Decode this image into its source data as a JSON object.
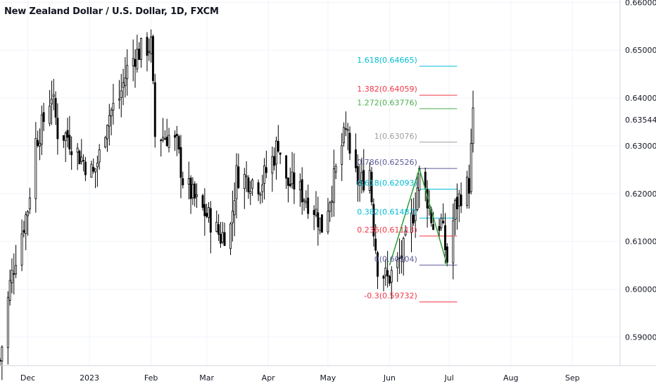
{
  "header": {
    "title": "New Zealand Dollar / U.S. Dollar, 1D, FXCM"
  },
  "colors": {
    "up": "#ffffff",
    "down": "#000000",
    "wick": "#000000",
    "grid": "#f0f3fa",
    "axis_text": "#131722",
    "fib_green_line": "#2e9e33"
  },
  "price_axis": {
    "labels": [
      "0.59000",
      "0.60000",
      "0.61000",
      "0.62000",
      "0.63000",
      "0.63544",
      "0.64000",
      "0.65000",
      "0.66000"
    ],
    "current_price": "0.63544"
  },
  "time_axis": {
    "labels": [
      "Dec",
      "2023",
      "Feb",
      "Mar",
      "Apr",
      "May",
      "Jun",
      "Jul",
      "Aug",
      "Sep"
    ]
  },
  "fib_levels": [
    {
      "label": "1.618(0.64665)",
      "price": 0.64665,
      "color": "#00bcd4"
    },
    {
      "label": "1.382(0.64059)",
      "price": 0.64059,
      "color": "#f23645"
    },
    {
      "label": "1.272(0.63776)",
      "price": 0.63776,
      "color": "#4caf50"
    },
    {
      "label": "1(0.63076)",
      "price": 0.63076,
      "color": "#9e9e9e"
    },
    {
      "label": "0.786(0.62526)",
      "price": 0.62526,
      "color": "#5b5b9a"
    },
    {
      "label": "0.618(0.62093)",
      "price": 0.62093,
      "color": "#00bcd4"
    },
    {
      "label": "0.382(0.61487)",
      "price": 0.61487,
      "color": "#00bcd4"
    },
    {
      "label": "0.236(0.61113)",
      "price": 0.61113,
      "color": "#f23645"
    },
    {
      "label": "0(0.60504)",
      "price": 0.60504,
      "color": "#5b5b9a"
    },
    {
      "label": "-0.3(0.59732)",
      "price": 0.59732,
      "color": "#f23645"
    }
  ],
  "chart_data": {
    "type": "candlestick",
    "title": "New Zealand Dollar / U.S. Dollar, 1D, FXCM",
    "ylim": [
      0.584,
      0.6605
    ],
    "x_range": [
      "2022-11-17",
      "2023-09-25"
    ],
    "x_ticks": [
      {
        "label": "Dec",
        "date": "2022-12-01"
      },
      {
        "label": "2023",
        "date": "2023-01-01"
      },
      {
        "label": "Feb",
        "date": "2023-02-01"
      },
      {
        "label": "Mar",
        "date": "2023-03-01"
      },
      {
        "label": "Apr",
        "date": "2023-04-01"
      },
      {
        "label": "May",
        "date": "2023-05-01"
      },
      {
        "label": "Jun",
        "date": "2023-06-01"
      },
      {
        "label": "Jul",
        "date": "2023-07-01"
      },
      {
        "label": "Aug",
        "date": "2023-08-01"
      },
      {
        "label": "Sep",
        "date": "2023-09-01"
      }
    ],
    "keypoints": [
      [
        "2022-11-17",
        0.585
      ],
      [
        "2022-11-22",
        0.601
      ],
      [
        "2022-11-25",
        0.607
      ],
      [
        "2022-12-01",
        0.617
      ],
      [
        "2022-12-05",
        0.631
      ],
      [
        "2022-12-08",
        0.634
      ],
      [
        "2022-12-13",
        0.641
      ],
      [
        "2022-12-16",
        0.633
      ],
      [
        "2022-12-21",
        0.632
      ],
      [
        "2022-12-27",
        0.628
      ],
      [
        "2023-01-03",
        0.624
      ],
      [
        "2023-01-06",
        0.628
      ],
      [
        "2023-01-10",
        0.636
      ],
      [
        "2023-01-16",
        0.64
      ],
      [
        "2023-01-20",
        0.646
      ],
      [
        "2023-01-24",
        0.649
      ],
      [
        "2023-01-27",
        0.65
      ],
      [
        "2023-02-01",
        0.651
      ],
      [
        "2023-02-03",
        0.632
      ],
      [
        "2023-02-10",
        0.632
      ],
      [
        "2023-02-14",
        0.63
      ],
      [
        "2023-02-17",
        0.623
      ],
      [
        "2023-02-24",
        0.618
      ],
      [
        "2023-03-02",
        0.615
      ],
      [
        "2023-03-08",
        0.611
      ],
      [
        "2023-03-13",
        0.613
      ],
      [
        "2023-03-16",
        0.624
      ],
      [
        "2023-03-22",
        0.623
      ],
      [
        "2023-03-28",
        0.622
      ],
      [
        "2023-04-04",
        0.628
      ],
      [
        "2023-04-06",
        0.631
      ],
      [
        "2023-04-10",
        0.622
      ],
      [
        "2023-04-14",
        0.622
      ],
      [
        "2023-04-18",
        0.62
      ],
      [
        "2023-04-24",
        0.617
      ],
      [
        "2023-04-28",
        0.613
      ],
      [
        "2023-05-03",
        0.621
      ],
      [
        "2023-05-08",
        0.63
      ],
      [
        "2023-05-11",
        0.634
      ],
      [
        "2023-05-12",
        0.626
      ],
      [
        "2023-05-17",
        0.622
      ],
      [
        "2023-05-22",
        0.625
      ],
      [
        "2023-05-24",
        0.613
      ],
      [
        "2023-05-26",
        0.605
      ],
      [
        "2023-05-31",
        0.602
      ],
      [
        "2023-06-05",
        0.605
      ],
      [
        "2023-06-08",
        0.608
      ],
      [
        "2023-06-13",
        0.616
      ],
      [
        "2023-06-16",
        0.624
      ],
      [
        "2023-06-20",
        0.619
      ],
      [
        "2023-06-23",
        0.613
      ],
      [
        "2023-06-27",
        0.614
      ],
      [
        "2023-06-30",
        0.606
      ],
      [
        "2023-07-04",
        0.617
      ],
      [
        "2023-07-07",
        0.62
      ],
      [
        "2023-07-11",
        0.622
      ],
      [
        "2023-07-13",
        0.636
      ]
    ],
    "fib_anchor_lines": [
      {
        "from": [
          "2023-06-01",
          0.605
        ],
        "to": [
          "2023-06-16",
          0.6252
        ]
      },
      {
        "from": [
          "2023-06-16",
          0.6252
        ],
        "to": [
          "2023-06-30",
          0.605
        ]
      }
    ]
  }
}
